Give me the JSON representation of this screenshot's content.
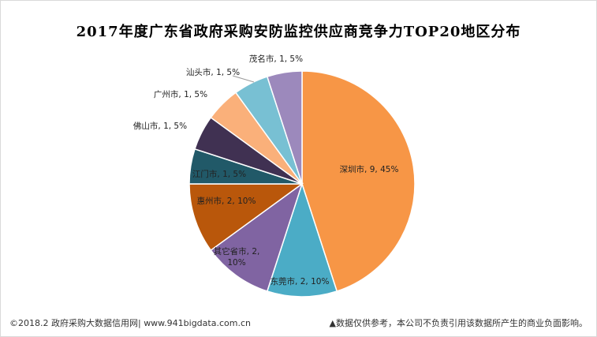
{
  "chart_data": {
    "type": "pie",
    "title": "2017年度广东省政府采购安防监控供应商竞争力TOP20地区分布",
    "slices": [
      {
        "label": "深圳市",
        "count": 9,
        "percent": 45,
        "text": "深圳市, 9, 45%",
        "color": "#F79646"
      },
      {
        "label": "东莞市",
        "count": 2,
        "percent": 10,
        "text": "东莞市, 2, 10%",
        "color": "#4BACC6"
      },
      {
        "label": "其它省市",
        "count": 2,
        "percent": 10,
        "text": "其它省市, 2, 10%",
        "color": "#8064A2"
      },
      {
        "label": "惠州市",
        "count": 2,
        "percent": 10,
        "text": "惠州市, 2, 10%",
        "color": "#B9570B"
      },
      {
        "label": "江门市",
        "count": 1,
        "percent": 5,
        "text": "江门市, 1, 5%",
        "color": "#215968"
      },
      {
        "label": "佛山市",
        "count": 1,
        "percent": 5,
        "text": "佛山市, 1, 5%",
        "color": "#403152"
      },
      {
        "label": "广州市",
        "count": 1,
        "percent": 5,
        "text": "广州市, 1, 5%",
        "color": "#FAB07A"
      },
      {
        "label": "汕头市",
        "count": 1,
        "percent": 5,
        "text": "汕头市, 1, 5%",
        "color": "#78C0D3"
      },
      {
        "label": "茂名市",
        "count": 1,
        "percent": 5,
        "text": "茂名市, 1, 5%",
        "color": "#9C89BC"
      }
    ]
  },
  "footer": {
    "left": "©2018.2 政府采购大数据信用网| www.941bigdata.com.cn",
    "right": "▲数据仅供参考，本公司不负责引用该数据所产生的商业负面影响。"
  }
}
